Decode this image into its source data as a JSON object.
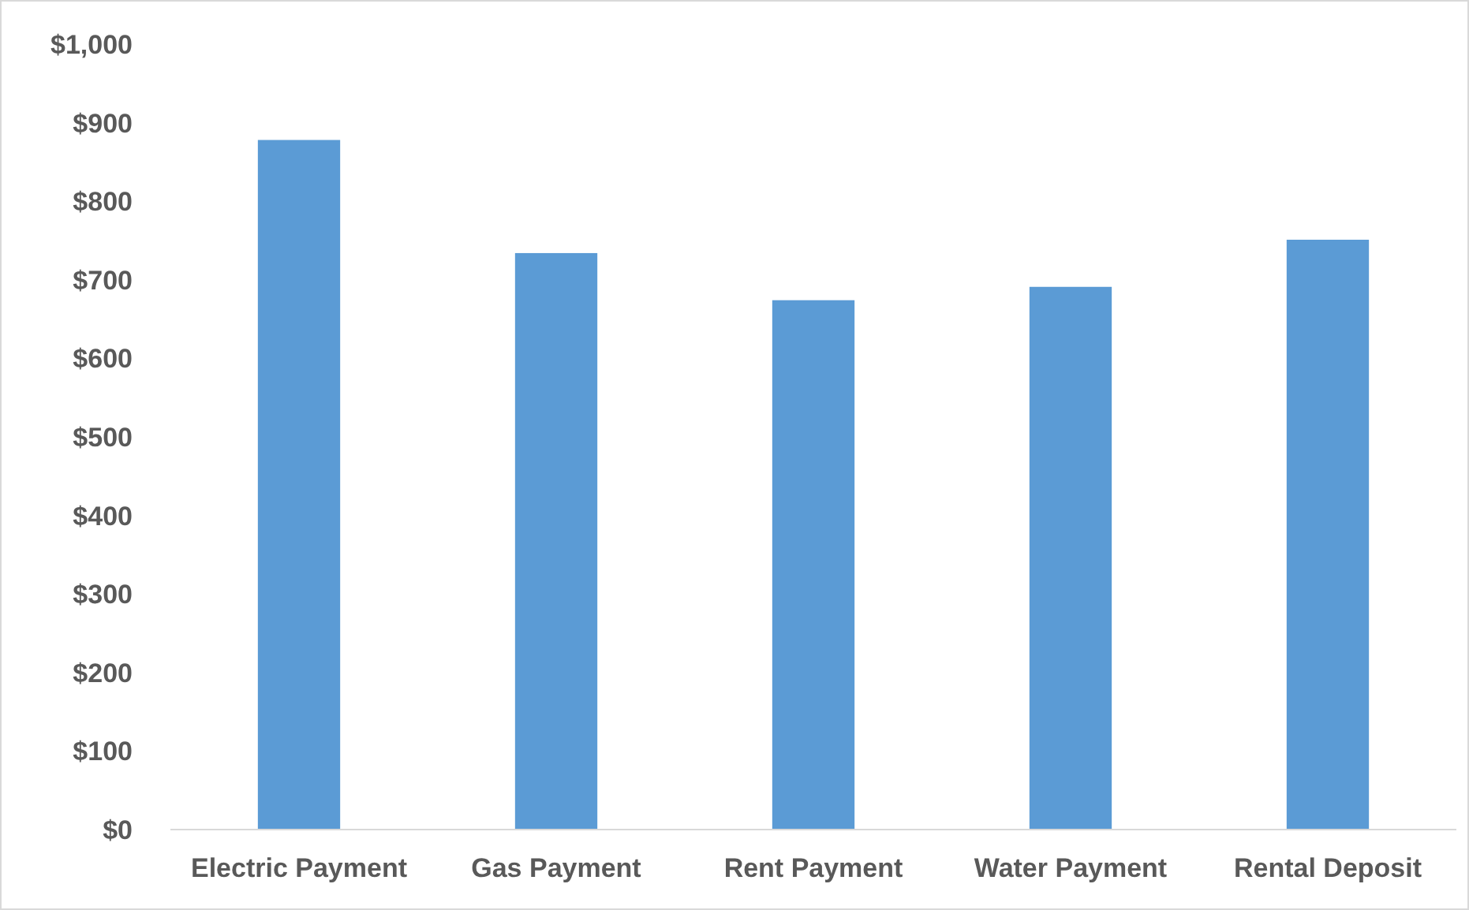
{
  "chart_data": {
    "type": "bar",
    "categories": [
      "Electric Payment",
      "Gas Payment",
      "Rent Payment",
      "Water Payment",
      "Rental Deposit"
    ],
    "values": [
      878,
      734,
      674,
      691,
      751
    ],
    "color": "#5b9bd5",
    "ylim": [
      0,
      1000
    ],
    "yticks": [
      {
        "value": 0,
        "label": "$0"
      },
      {
        "value": 100,
        "label": "$100"
      },
      {
        "value": 200,
        "label": "$200"
      },
      {
        "value": 300,
        "label": "$300"
      },
      {
        "value": 400,
        "label": "$400"
      },
      {
        "value": 500,
        "label": "$500"
      },
      {
        "value": 600,
        "label": "$600"
      },
      {
        "value": 700,
        "label": "$700"
      },
      {
        "value": 800,
        "label": "$800"
      },
      {
        "value": 900,
        "label": "$900"
      },
      {
        "value": 1000,
        "label": "$1,000"
      }
    ],
    "grid": false
  }
}
